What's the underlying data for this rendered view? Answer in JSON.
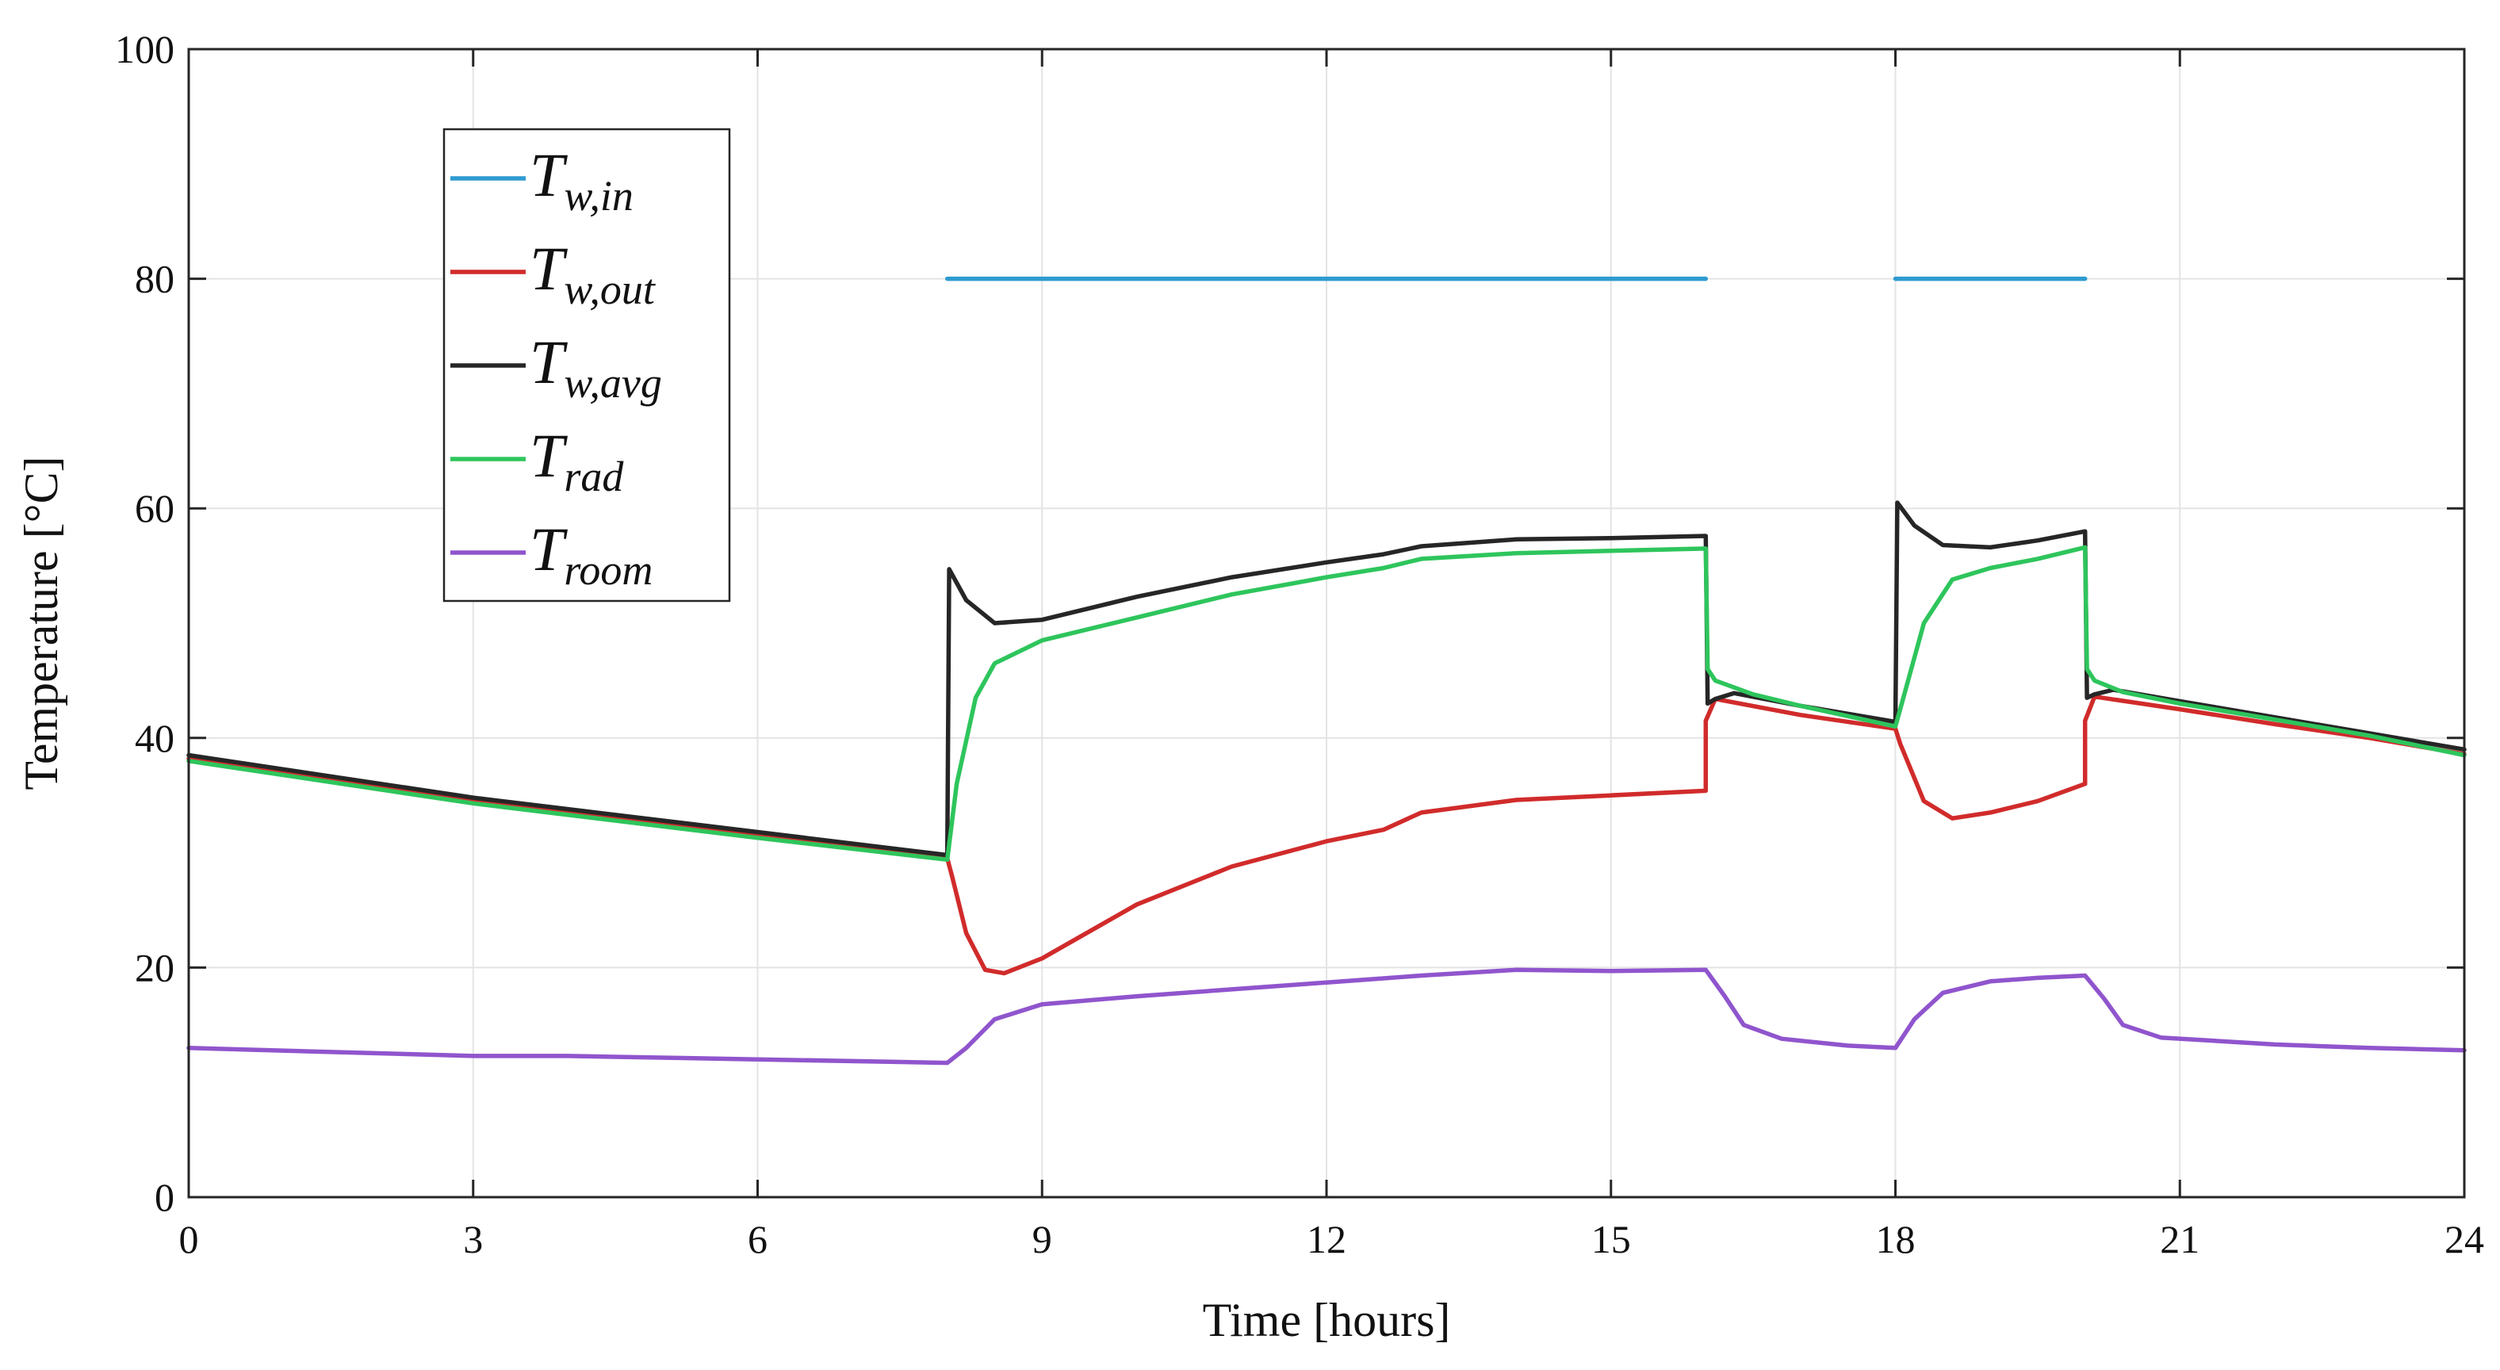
{
  "chart_data": {
    "type": "line",
    "title": "",
    "xlabel": "Time [hours]",
    "ylabel": "Temperature [°C]",
    "xlim": [
      0,
      24
    ],
    "ylim": [
      0,
      100
    ],
    "xticks": [
      0,
      3,
      6,
      9,
      12,
      15,
      18,
      21,
      24
    ],
    "xtick_labels": [
      "0",
      "3",
      "6",
      "9",
      "12",
      "15",
      "18",
      "21",
      "24"
    ],
    "yticks": [
      0,
      20,
      40,
      60,
      80,
      100
    ],
    "ytick_labels": [
      "0",
      "20",
      "40",
      "60",
      "80",
      "100"
    ],
    "grid": true,
    "legend_position": "top-left",
    "series": [
      {
        "name": "T_w,in",
        "legend_main": "T",
        "legend_sub": "w,in",
        "color": "#2f9bd0",
        "points": [
          [
            0,
            null
          ],
          [
            8,
            null
          ],
          [
            8,
            80
          ],
          [
            16,
            80
          ],
          [
            16,
            null
          ],
          [
            18,
            null
          ],
          [
            18,
            80
          ],
          [
            20,
            80
          ],
          [
            20,
            null
          ],
          [
            24,
            null
          ]
        ]
      },
      {
        "name": "T_w,out",
        "legend_main": "T",
        "legend_sub": "w,out",
        "color": "#d12b2b",
        "points": [
          [
            0,
            38.2
          ],
          [
            3,
            34.5
          ],
          [
            6,
            31.5
          ],
          [
            8,
            29.5
          ],
          [
            8.05,
            28
          ],
          [
            8.2,
            23
          ],
          [
            8.4,
            19.8
          ],
          [
            8.6,
            19.5
          ],
          [
            9,
            20.8
          ],
          [
            10,
            25.5
          ],
          [
            11,
            28.8
          ],
          [
            12,
            31
          ],
          [
            12.6,
            32
          ],
          [
            13,
            33.5
          ],
          [
            14,
            34.6
          ],
          [
            15,
            35
          ],
          [
            16,
            35.4
          ],
          [
            16,
            41.5
          ],
          [
            16.1,
            43.4
          ],
          [
            17,
            42
          ],
          [
            18,
            40.8
          ],
          [
            18.05,
            39.5
          ],
          [
            18.3,
            34.5
          ],
          [
            18.6,
            33
          ],
          [
            19,
            33.5
          ],
          [
            19.5,
            34.5
          ],
          [
            20,
            36
          ],
          [
            20,
            41.5
          ],
          [
            20.1,
            43.6
          ],
          [
            21,
            42.5
          ],
          [
            22,
            41.2
          ],
          [
            23,
            40
          ],
          [
            24,
            38.6
          ]
        ]
      },
      {
        "name": "T_w,avg",
        "legend_main": "T",
        "legend_sub": "w,avg",
        "color": "#262626",
        "points": [
          [
            0,
            38.5
          ],
          [
            3,
            34.8
          ],
          [
            6,
            31.8
          ],
          [
            8,
            29.8
          ],
          [
            8.02,
            54.7
          ],
          [
            8.2,
            52
          ],
          [
            8.5,
            50
          ],
          [
            9,
            50.3
          ],
          [
            10,
            52.3
          ],
          [
            11,
            54
          ],
          [
            12,
            55.3
          ],
          [
            12.6,
            56
          ],
          [
            13,
            56.7
          ],
          [
            14,
            57.3
          ],
          [
            15,
            57.4
          ],
          [
            16,
            57.6
          ],
          [
            16.02,
            43
          ],
          [
            16.1,
            43.4
          ],
          [
            16.3,
            43.9
          ],
          [
            17,
            42.8
          ],
          [
            18,
            41.4
          ],
          [
            18.02,
            60.5
          ],
          [
            18.2,
            58.5
          ],
          [
            18.5,
            56.8
          ],
          [
            19,
            56.6
          ],
          [
            19.5,
            57.2
          ],
          [
            20,
            58
          ],
          [
            20.02,
            43.5
          ],
          [
            20.1,
            43.8
          ],
          [
            20.3,
            44.2
          ],
          [
            21,
            43.2
          ],
          [
            22,
            41.8
          ],
          [
            23,
            40.4
          ],
          [
            24,
            39
          ]
        ]
      },
      {
        "name": "T_rad",
        "legend_main": "T",
        "legend_sub": "rad",
        "color": "#2ec55c",
        "points": [
          [
            0,
            38
          ],
          [
            3,
            34.3
          ],
          [
            6,
            31.3
          ],
          [
            8,
            29.4
          ],
          [
            8.1,
            36
          ],
          [
            8.3,
            43.5
          ],
          [
            8.5,
            46.5
          ],
          [
            9,
            48.5
          ],
          [
            10,
            50.5
          ],
          [
            11,
            52.5
          ],
          [
            12,
            54
          ],
          [
            12.6,
            54.8
          ],
          [
            13,
            55.6
          ],
          [
            14,
            56.1
          ],
          [
            15,
            56.3
          ],
          [
            16,
            56.5
          ],
          [
            16.02,
            46
          ],
          [
            16.1,
            45
          ],
          [
            16.5,
            43.8
          ],
          [
            17,
            42.8
          ],
          [
            18,
            41
          ],
          [
            18.1,
            44
          ],
          [
            18.3,
            50
          ],
          [
            18.6,
            53.8
          ],
          [
            19,
            54.8
          ],
          [
            19.5,
            55.6
          ],
          [
            20,
            56.6
          ],
          [
            20.02,
            46
          ],
          [
            20.1,
            45
          ],
          [
            20.4,
            44
          ],
          [
            21,
            43
          ],
          [
            22,
            41.6
          ],
          [
            23,
            40.2
          ],
          [
            24,
            38.5
          ]
        ]
      },
      {
        "name": "T_room",
        "legend_main": "T",
        "legend_sub": "room",
        "color": "#9055cd",
        "points": [
          [
            0,
            13
          ],
          [
            3,
            12.3
          ],
          [
            4,
            12.3
          ],
          [
            6,
            12
          ],
          [
            8,
            11.7
          ],
          [
            8.2,
            13
          ],
          [
            8.5,
            15.5
          ],
          [
            9,
            16.8
          ],
          [
            10,
            17.5
          ],
          [
            11,
            18.1
          ],
          [
            12,
            18.7
          ],
          [
            13,
            19.3
          ],
          [
            14,
            19.8
          ],
          [
            15,
            19.7
          ],
          [
            16,
            19.8
          ],
          [
            16.2,
            17.5
          ],
          [
            16.4,
            15
          ],
          [
            16.8,
            13.8
          ],
          [
            17.5,
            13.2
          ],
          [
            18,
            13
          ],
          [
            18.2,
            15.5
          ],
          [
            18.5,
            17.8
          ],
          [
            19,
            18.8
          ],
          [
            19.5,
            19.1
          ],
          [
            20,
            19.3
          ],
          [
            20.2,
            17.3
          ],
          [
            20.4,
            15
          ],
          [
            20.8,
            13.9
          ],
          [
            22,
            13.3
          ],
          [
            23,
            13
          ],
          [
            24,
            12.8
          ]
        ]
      }
    ]
  }
}
